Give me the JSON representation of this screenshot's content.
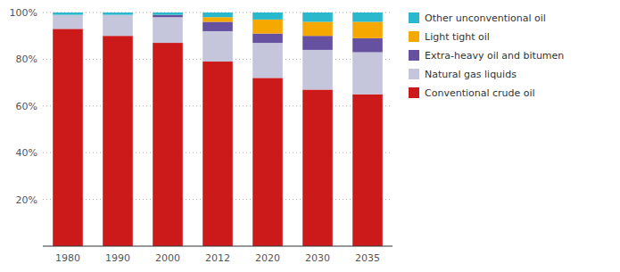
{
  "chart_data": {
    "type": "bar",
    "stacked": true,
    "categories": [
      "1980",
      "1990",
      "2000",
      "2012",
      "2020",
      "2030",
      "2035"
    ],
    "series": [
      {
        "name": "Conventional crude oil",
        "color": "#cc1a1a",
        "values": [
          93,
          90,
          87,
          79,
          72,
          67,
          65
        ]
      },
      {
        "name": "Natural gas liquids",
        "color": "#c5c5dc",
        "values": [
          6,
          9,
          11,
          13,
          15,
          17,
          18
        ]
      },
      {
        "name": "Extra-heavy oil and bitumen",
        "color": "#6650a0",
        "values": [
          0,
          0,
          1,
          4,
          4,
          6,
          6
        ]
      },
      {
        "name": "Light tight oil",
        "color": "#f5a800",
        "values": [
          0,
          0,
          0,
          2,
          6,
          6,
          7
        ]
      },
      {
        "name": "Other unconventional oil",
        "color": "#29b8cc",
        "values": [
          1,
          1,
          1,
          2,
          3,
          4,
          4
        ]
      }
    ],
    "ylim": [
      0,
      100
    ],
    "yticks": [
      {
        "value": 20,
        "label": "20%"
      },
      {
        "value": 40,
        "label": "40%"
      },
      {
        "value": 60,
        "label": "60%"
      },
      {
        "value": 80,
        "label": "80%"
      },
      {
        "value": 100,
        "label": "100%"
      }
    ],
    "grid": true,
    "legend": "right"
  }
}
